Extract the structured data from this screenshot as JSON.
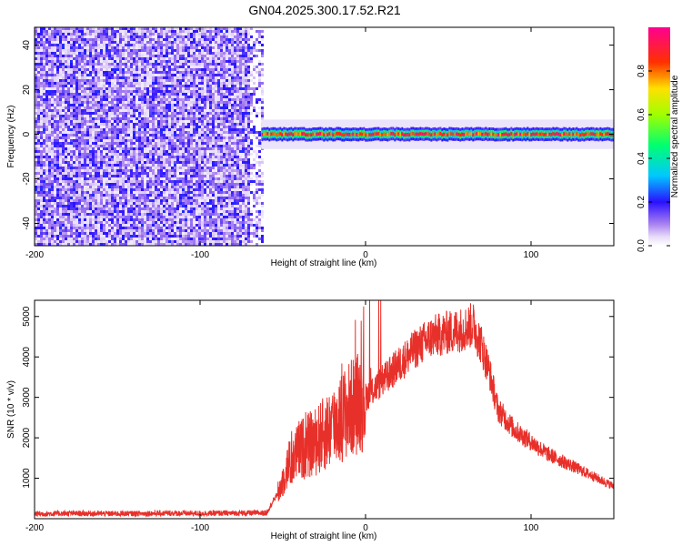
{
  "figure": {
    "title": "GN04.2025.300.17.52.R21"
  },
  "chart_data": [
    {
      "type": "heatmap",
      "title": "GN04.2025.300.17.52.R21",
      "xlabel": "Height of straight line (km)",
      "ylabel": "Frequency (Hz)",
      "xlim": [
        -200,
        150
      ],
      "ylim": [
        -50,
        48
      ],
      "x_ticks": [
        -200,
        -100,
        0,
        100
      ],
      "x_tick_labels": [
        "-200",
        "-100",
        "0",
        "100"
      ],
      "y_ticks": [
        -40,
        -20,
        0,
        20,
        40
      ],
      "y_tick_labels": [
        "-40",
        "-20",
        "0",
        "20",
        "40"
      ],
      "grid": false,
      "noise_region_x": [
        -200,
        -63
      ],
      "signal_band": {
        "x_start": -63,
        "x_end": 150,
        "center_hz": 0,
        "half_width_hz": 3
      },
      "colorbar": {
        "label": "Normalized spectral amplitude",
        "range": [
          0,
          1
        ],
        "ticks": [
          0.0,
          0.2,
          0.4,
          0.6,
          0.8
        ],
        "tick_labels": [
          "0.0",
          "0.2",
          "0.4",
          "0.6",
          "0.8"
        ]
      }
    },
    {
      "type": "line",
      "xlabel": "Height of straight line (km)",
      "ylabel": "SNR (10 * v/v)",
      "xlim": [
        -200,
        150
      ],
      "ylim": [
        0,
        5400
      ],
      "x_ticks": [
        -200,
        -100,
        0,
        100
      ],
      "x_tick_labels": [
        "-200",
        "-100",
        "0",
        "100"
      ],
      "y_ticks": [
        1000,
        2000,
        3000,
        4000,
        5000
      ],
      "y_tick_labels": [
        "1000",
        "2000",
        "3000",
        "4000",
        "5000"
      ],
      "grid": false,
      "color": "#e8302a",
      "envelope": {
        "x": [
          -200,
          -180,
          -150,
          -120,
          -100,
          -80,
          -60,
          -52,
          -48,
          -40,
          -30,
          -20,
          -10,
          0,
          10,
          20,
          30,
          40,
          50,
          60,
          65,
          70,
          75,
          80,
          90,
          100,
          110,
          120,
          130,
          140,
          150
        ],
        "y": [
          120,
          130,
          125,
          135,
          130,
          140,
          140,
          700,
          1200,
          1700,
          1900,
          2300,
          2700,
          3000,
          3400,
          3800,
          4200,
          4500,
          4600,
          4700,
          4800,
          4300,
          3600,
          2700,
          2200,
          1900,
          1600,
          1400,
          1200,
          1000,
          800
        ]
      }
    }
  ]
}
